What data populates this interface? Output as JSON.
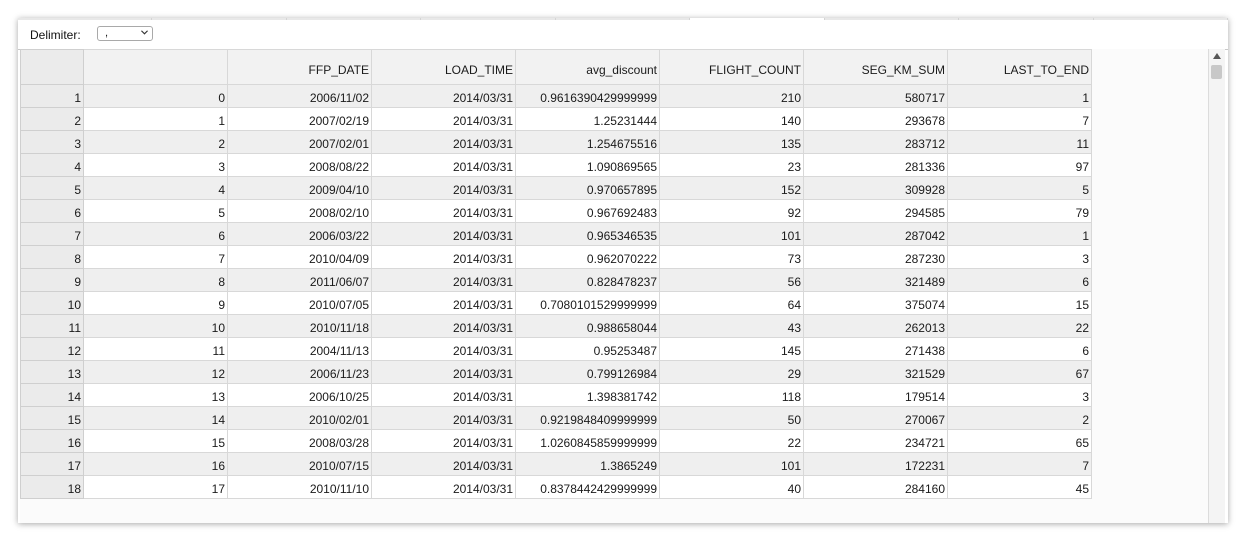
{
  "toolbar": {
    "delimiter_label": "Delimiter:",
    "delimiter_value": ","
  },
  "table": {
    "columns": [
      "",
      "",
      "FFP_DATE",
      "LOAD_TIME",
      "avg_discount",
      "FLIGHT_COUNT",
      "SEG_KM_SUM",
      "LAST_TO_END"
    ],
    "rows": [
      [
        "1",
        "0",
        "2006/11/02",
        "2014/03/31",
        "0.9616390429999999",
        "210",
        "580717",
        "1"
      ],
      [
        "2",
        "1",
        "2007/02/19",
        "2014/03/31",
        "1.25231444",
        "140",
        "293678",
        "7"
      ],
      [
        "3",
        "2",
        "2007/02/01",
        "2014/03/31",
        "1.254675516",
        "135",
        "283712",
        "11"
      ],
      [
        "4",
        "3",
        "2008/08/22",
        "2014/03/31",
        "1.090869565",
        "23",
        "281336",
        "97"
      ],
      [
        "5",
        "4",
        "2009/04/10",
        "2014/03/31",
        "0.970657895",
        "152",
        "309928",
        "5"
      ],
      [
        "6",
        "5",
        "2008/02/10",
        "2014/03/31",
        "0.967692483",
        "92",
        "294585",
        "79"
      ],
      [
        "7",
        "6",
        "2006/03/22",
        "2014/03/31",
        "0.965346535",
        "101",
        "287042",
        "1"
      ],
      [
        "8",
        "7",
        "2010/04/09",
        "2014/03/31",
        "0.962070222",
        "73",
        "287230",
        "3"
      ],
      [
        "9",
        "8",
        "2011/06/07",
        "2014/03/31",
        "0.828478237",
        "56",
        "321489",
        "6"
      ],
      [
        "10",
        "9",
        "2010/07/05",
        "2014/03/31",
        "0.7080101529999999",
        "64",
        "375074",
        "15"
      ],
      [
        "11",
        "10",
        "2010/11/18",
        "2014/03/31",
        "0.988658044",
        "43",
        "262013",
        "22"
      ],
      [
        "12",
        "11",
        "2004/11/13",
        "2014/03/31",
        "0.95253487",
        "145",
        "271438",
        "6"
      ],
      [
        "13",
        "12",
        "2006/11/23",
        "2014/03/31",
        "0.799126984",
        "29",
        "321529",
        "67"
      ],
      [
        "14",
        "13",
        "2006/10/25",
        "2014/03/31",
        "1.398381742",
        "118",
        "179514",
        "3"
      ],
      [
        "15",
        "14",
        "2010/02/01",
        "2014/03/31",
        "0.9219848409999999",
        "50",
        "270067",
        "2"
      ],
      [
        "16",
        "15",
        "2008/03/28",
        "2014/03/31",
        "1.0260845859999999",
        "22",
        "234721",
        "65"
      ],
      [
        "17",
        "16",
        "2010/07/15",
        "2014/03/31",
        "1.3865249",
        "101",
        "172231",
        "7"
      ],
      [
        "18",
        "17",
        "2010/11/10",
        "2014/03/31",
        "0.8378442429999999",
        "40",
        "284160",
        "45"
      ]
    ]
  },
  "icons": {
    "select_chevron": "chevron-down-icon",
    "scroll_up": "arrow-up-icon"
  }
}
